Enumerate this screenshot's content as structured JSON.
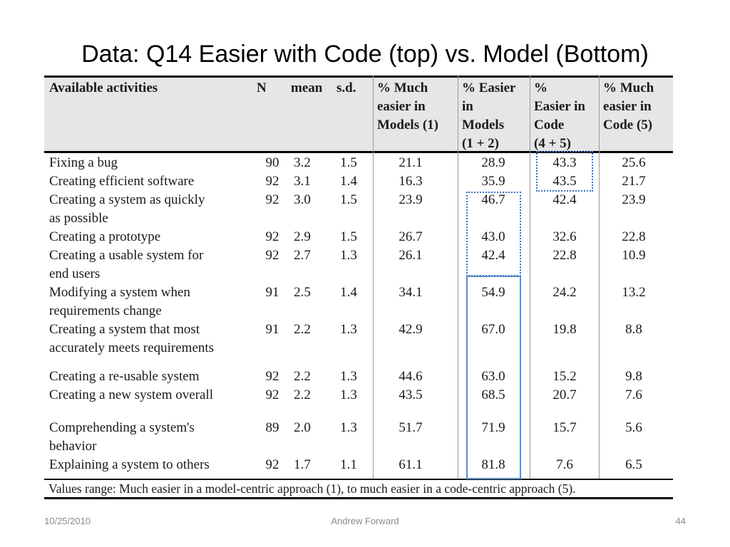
{
  "title": "Data: Q14 Easier with Code (top) vs. Model (Bottom)",
  "table": {
    "headers": {
      "activity": "Available activities",
      "n": "N",
      "mean": "mean",
      "sd": "s.d.",
      "much_models": "% Much\neasier in\nModels (1)",
      "easier_models": "% Easier\nin\nModels\n(1 + 2)",
      "easier_code": "%\nEasier in\nCode\n(4 + 5)",
      "much_code": "% Much\neasier in\nCode (5)"
    },
    "rows": [
      {
        "activity": [
          "Fixing a bug"
        ],
        "n": "90",
        "mean": "3.2",
        "sd": "1.5",
        "much_models": "21.1",
        "easier_models": "28.9",
        "easier_code": "43.3",
        "much_code": "25.6"
      },
      {
        "activity": [
          "Creating efficient software"
        ],
        "n": "92",
        "mean": "3.1",
        "sd": "1.4",
        "much_models": "16.3",
        "easier_models": "35.9",
        "easier_code": "43.5",
        "much_code": "21.7"
      },
      {
        "activity": [
          "Creating a system as quickly",
          "as possible"
        ],
        "n": "92",
        "mean": "3.0",
        "sd": "1.5",
        "much_models": "23.9",
        "easier_models": "46.7",
        "easier_code": "42.4",
        "much_code": "23.9"
      },
      {
        "activity": [
          "Creating a prototype"
        ],
        "n": "92",
        "mean": "2.9",
        "sd": "1.5",
        "much_models": "26.7",
        "easier_models": "43.0",
        "easier_code": "32.6",
        "much_code": "22.8"
      },
      {
        "activity": [
          "Creating a usable system for",
          "end users"
        ],
        "n": "92",
        "mean": "2.7",
        "sd": "1.3",
        "much_models": "26.1",
        "easier_models": "42.4",
        "easier_code": "22.8",
        "much_code": "10.9"
      },
      {
        "activity": [
          "Modifying a system when",
          "requirements change"
        ],
        "n": "91",
        "mean": "2.5",
        "sd": "1.4",
        "much_models": "34.1",
        "easier_models": "54.9",
        "easier_code": "24.2",
        "much_code": "13.2"
      },
      {
        "activity": [
          "Creating a system that most",
          "accurately meets requirements"
        ],
        "n": "91",
        "mean": "2.2",
        "sd": "1.3",
        "much_models": "42.9",
        "easier_models": "67.0",
        "easier_code": "19.8",
        "much_code": "8.8"
      },
      {
        "activity": [
          "Creating a re-usable system"
        ],
        "n": "92",
        "mean": "2.2",
        "sd": "1.3",
        "much_models": "44.6",
        "easier_models": "63.0",
        "easier_code": "15.2",
        "much_code": "9.8"
      },
      {
        "activity": [
          "Creating a new system overall"
        ],
        "n": "92",
        "mean": "2.2",
        "sd": "1.3",
        "much_models": "43.5",
        "easier_models": "68.5",
        "easier_code": "20.7",
        "much_code": "7.6"
      },
      {
        "activity": [
          "Comprehending a system's",
          "behavior"
        ],
        "n": "89",
        "mean": "2.0",
        "sd": "1.3",
        "much_models": "51.7",
        "easier_models": "71.9",
        "easier_code": "15.7",
        "much_code": "5.6"
      },
      {
        "activity": [
          "Explaining a system to others"
        ],
        "n": "92",
        "mean": "1.7",
        "sd": "1.1",
        "much_models": "61.1",
        "easier_models": "81.8",
        "easier_code": "7.6",
        "much_code": "6.5"
      }
    ],
    "footnote": "Values range: Much easier in a model-centric approach (1), to much easier in a code-centric approach (5)."
  },
  "footer": {
    "date": "10/25/2010",
    "author": "Andrew Forward",
    "page": "44"
  },
  "colors": {
    "header_bg": "#e6e6e6",
    "highlight_dotted": "#3b72c4",
    "highlight_solid": "#5b8fc9"
  }
}
